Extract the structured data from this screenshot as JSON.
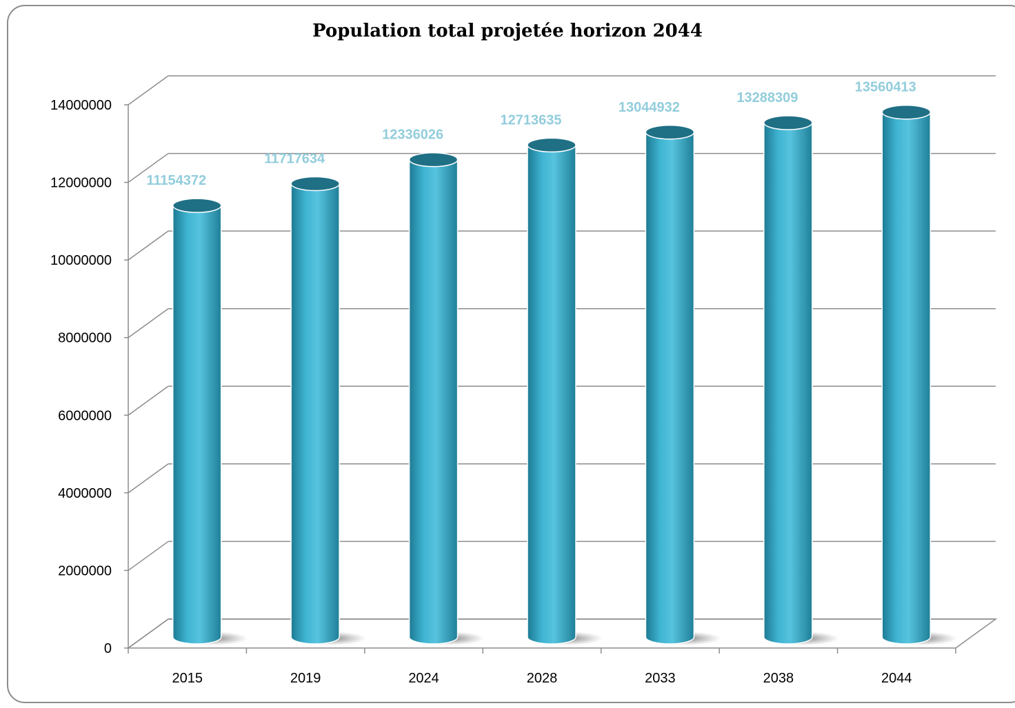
{
  "chart_data": {
    "type": "bar",
    "title": "Population total projetée horizon 2044",
    "categories": [
      "2015",
      "2019",
      "2024",
      "2028",
      "2033",
      "2038",
      "2044"
    ],
    "values": [
      11154372,
      11717634,
      12336026,
      12713635,
      13044932,
      13288309,
      13560413
    ],
    "value_labels": [
      "11154372",
      "11717634",
      "12336026",
      "12713635",
      "13044932",
      "13288309",
      "13560413"
    ],
    "y_ticks": [
      "0",
      "2000000",
      "4000000",
      "6000000",
      "8000000",
      "10000000",
      "12000000",
      "14000000"
    ],
    "ylim": [
      0,
      14000000
    ],
    "xlabel": "",
    "ylabel": "",
    "grid": true,
    "legend": "none",
    "bar_shape": "3d-cylinder",
    "colors": {
      "bar": "#31a5c3",
      "bar_dark": "#1f6f85",
      "bar_light": "#4fbdd8",
      "data_label": "#92cddc",
      "grid": "#8c8c8c",
      "frame": "#8c8c8c"
    }
  }
}
